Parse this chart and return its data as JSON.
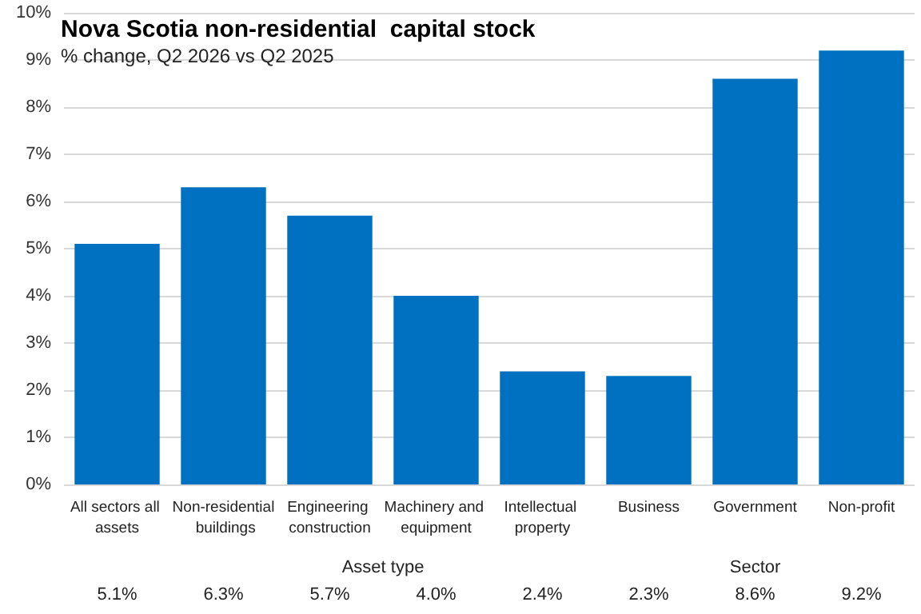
{
  "chart_data": {
    "type": "bar",
    "title": "Nova Scotia non-residential  capital stock",
    "subtitle": "% change, Q2 2026 vs Q2 2025",
    "categories": [
      "All sectors all assets",
      "Non-residential buildings",
      "Engineering construction",
      "Machinery and equipment",
      "Intellectual property",
      "Business",
      "Government",
      "Non-profit"
    ],
    "values": [
      5.1,
      6.3,
      5.7,
      4.0,
      2.4,
      2.3,
      8.6,
      9.2
    ],
    "value_labels": [
      "5.1%",
      "6.3%",
      "5.7%",
      "4.0%",
      "2.4%",
      "2.3%",
      "8.6%",
      "9.2%"
    ],
    "color": "#0070c0",
    "annotations": [
      "Asset type",
      "Sector"
    ],
    "ylim": [
      0,
      10
    ],
    "yticks": [
      {
        "value": 0,
        "label": "0%"
      },
      {
        "value": 1,
        "label": "1%"
      },
      {
        "value": 2,
        "label": "2%"
      },
      {
        "value": 3,
        "label": "3%"
      },
      {
        "value": 4,
        "label": "4%"
      },
      {
        "value": 5,
        "label": "5%"
      },
      {
        "value": 6,
        "label": "6%"
      },
      {
        "value": 7,
        "label": "7%"
      },
      {
        "value": 8,
        "label": "8%"
      },
      {
        "value": 9,
        "label": "9%"
      },
      {
        "value": 10,
        "label": "10%"
      }
    ],
    "grid": "y"
  }
}
